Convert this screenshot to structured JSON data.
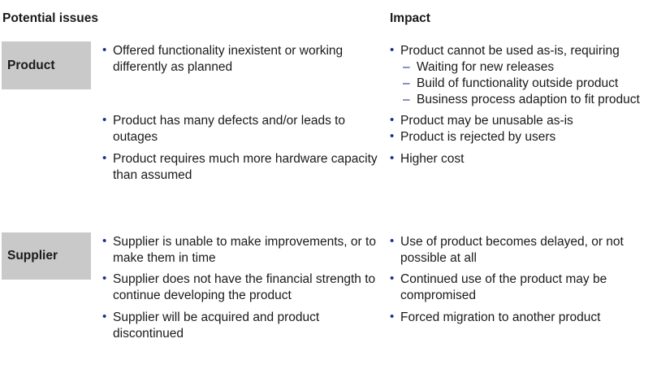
{
  "headers": {
    "issues": "Potential issues",
    "impact": "Impact"
  },
  "product": {
    "label": "Product",
    "issues": [
      "Offered functionality inexistent or working differently as planned",
      "Product has many defects and/or leads to outages",
      "Product requires much more hardware capacity than assumed"
    ],
    "impact_main": "Product cannot be used as-is, requiring",
    "impact_subs": [
      "Waiting for new releases",
      "Build of functionality outside product",
      "Business process adaption to fit product"
    ],
    "impact_more": [
      "Product may be unusable as-is",
      "Product is rejected by users",
      "Higher cost"
    ]
  },
  "supplier": {
    "label": "Supplier",
    "issues": [
      "Supplier is unable to make improvements, or to make them in time",
      "Supplier does not have the financial strength to continue developing the product",
      "Supplier will be acquired and product discontinued"
    ],
    "impacts": [
      "Use of product becomes delayed, or not possible at all",
      "Continued use of the product may be compromised",
      "Forced migration to another product"
    ]
  }
}
